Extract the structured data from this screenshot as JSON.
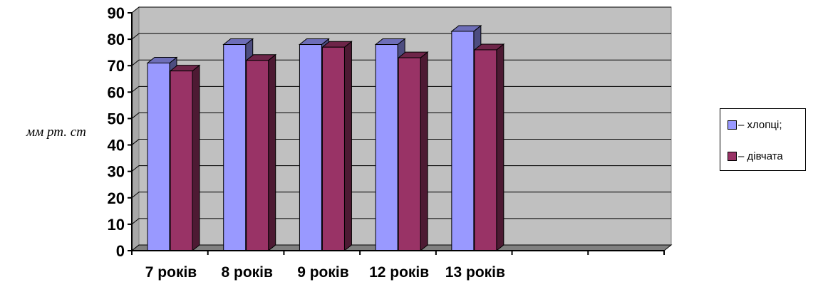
{
  "chart_data": {
    "type": "bar",
    "three_d": true,
    "title": "",
    "xlabel": "",
    "ylabel": "мм рт. ст",
    "ylim": [
      0,
      90
    ],
    "yticks": [
      "0",
      "10",
      "20",
      "30",
      "40",
      "50",
      "60",
      "70",
      "80",
      "90"
    ],
    "categories": [
      "7 років",
      "8 років",
      "9 років",
      "12 років",
      "13 років"
    ],
    "empty_category_slots": 2,
    "series": [
      {
        "name": "– хлопці;",
        "color": "#9999ff",
        "values": [
          71,
          78,
          78,
          78,
          83
        ]
      },
      {
        "name": "– дівчата",
        "color": "#993366",
        "values": [
          68,
          72,
          77,
          73,
          76
        ]
      }
    ],
    "grid": true,
    "plot_background": "#c0c0c0",
    "legend_position": "right"
  }
}
